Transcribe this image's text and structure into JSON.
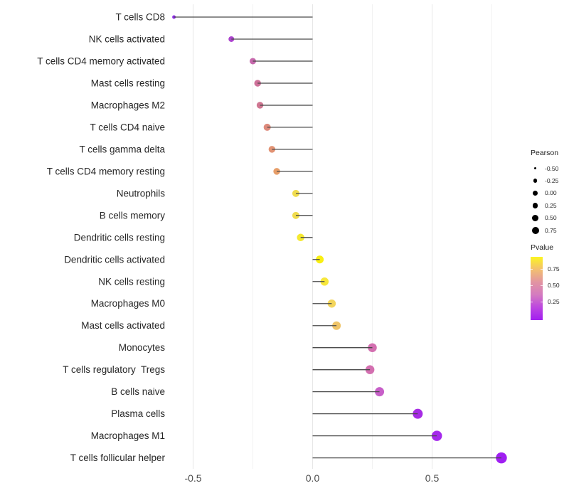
{
  "chart_data": {
    "type": "scatter",
    "variant": "lollipop",
    "orientation": "horizontal",
    "title": "",
    "xlabel": "",
    "ylabel": "",
    "xlim": [
      -0.62,
      0.83
    ],
    "grid": true,
    "x_ticks_major": [
      {
        "value": -0.5,
        "label": "-0.5"
      },
      {
        "value": 0.0,
        "label": "0.0"
      },
      {
        "value": 0.5,
        "label": "0.5"
      }
    ],
    "x_ticks_minor": [
      -0.25,
      0.25,
      0.75
    ],
    "series_note": "dot size encodes Pearson value, dot color encodes Pvalue",
    "points": [
      {
        "label": "T cells CD8",
        "pearson": -0.58,
        "size": 5,
        "color": "#8F2BE8"
      },
      {
        "label": "NK cells activated",
        "pearson": -0.34,
        "size": 8,
        "color": "#AC44CE"
      },
      {
        "label": "T cells CD4 memory activated",
        "pearson": -0.25,
        "size": 9,
        "color": "#C668AC"
      },
      {
        "label": "Mast cells resting",
        "pearson": -0.23,
        "size": 9.5,
        "color": "#CE7199"
      },
      {
        "label": "Macrophages M2",
        "pearson": -0.22,
        "size": 9.5,
        "color": "#D07792"
      },
      {
        "label": "T cells CD4 naive",
        "pearson": -0.19,
        "size": 10,
        "color": "#DE8A7C"
      },
      {
        "label": "T cells gamma delta",
        "pearson": -0.17,
        "size": 9.5,
        "color": "#E29374"
      },
      {
        "label": "T cells CD4 memory resting",
        "pearson": -0.15,
        "size": 9.5,
        "color": "#E79E69"
      },
      {
        "label": "Neutrophils",
        "pearson": -0.07,
        "size": 10,
        "color": "#F0DC4E"
      },
      {
        "label": "B cells memory",
        "pearson": -0.07,
        "size": 10,
        "color": "#F0DC4E"
      },
      {
        "label": "Dendritic cells resting",
        "pearson": -0.05,
        "size": 10.5,
        "color": "#F5E930"
      },
      {
        "label": "Dendritic cells activated",
        "pearson": 0.03,
        "size": 11,
        "color": "#F9EF12"
      },
      {
        "label": "NK cells resting",
        "pearson": 0.05,
        "size": 11.5,
        "color": "#F7E73B"
      },
      {
        "label": "Macrophages M0",
        "pearson": 0.08,
        "size": 11.5,
        "color": "#F3D55C"
      },
      {
        "label": "Mast cells activated",
        "pearson": 0.1,
        "size": 12,
        "color": "#EFC468"
      },
      {
        "label": "Monocytes",
        "pearson": 0.25,
        "size": 12.5,
        "color": "#D36FB0"
      },
      {
        "label": "T cells regulatory  Tregs",
        "pearson": 0.24,
        "size": 12.5,
        "color": "#D36FB0"
      },
      {
        "label": "B cells naive",
        "pearson": 0.28,
        "size": 13,
        "color": "#C75FC8"
      },
      {
        "label": "Plasma cells",
        "pearson": 0.44,
        "size": 14,
        "color": "#A62BE4"
      },
      {
        "label": "Macrophages M1",
        "pearson": 0.52,
        "size": 14.5,
        "color": "#A528EC"
      },
      {
        "label": "T cells follicular helper",
        "pearson": 0.79,
        "size": 15.5,
        "color": "#A01FF2"
      }
    ]
  },
  "legends": {
    "size": {
      "title": "Pearson",
      "entries": [
        {
          "label": "-0.50",
          "d": 3.5
        },
        {
          "label": "-0.25",
          "d": 5.3
        },
        {
          "label": "0.00",
          "d": 7
        },
        {
          "label": "0.25",
          "d": 7.7
        },
        {
          "label": "0.50",
          "d": 9
        },
        {
          "label": "0.75",
          "d": 10
        }
      ]
    },
    "color": {
      "title": "Pvalue",
      "ticks": [
        {
          "value": 0.75,
          "label": "0.75"
        },
        {
          "value": 0.5,
          "label": "0.50"
        },
        {
          "value": 0.25,
          "label": "0.25"
        }
      ],
      "gradient_top_to_bottom": [
        "#FCF521",
        "#F3BF70",
        "#E295A2",
        "#D47BC0",
        "#BC46E0",
        "#A21EF0"
      ]
    }
  },
  "colors": {
    "background": "#ffffff",
    "stem": "#4a4a4a",
    "grid_major": "#e7e7e7",
    "grid_minor": "#f2f2f2",
    "category_label": "#262626",
    "tick_label": "#4d4d4d",
    "legend_dot": "#000000"
  }
}
